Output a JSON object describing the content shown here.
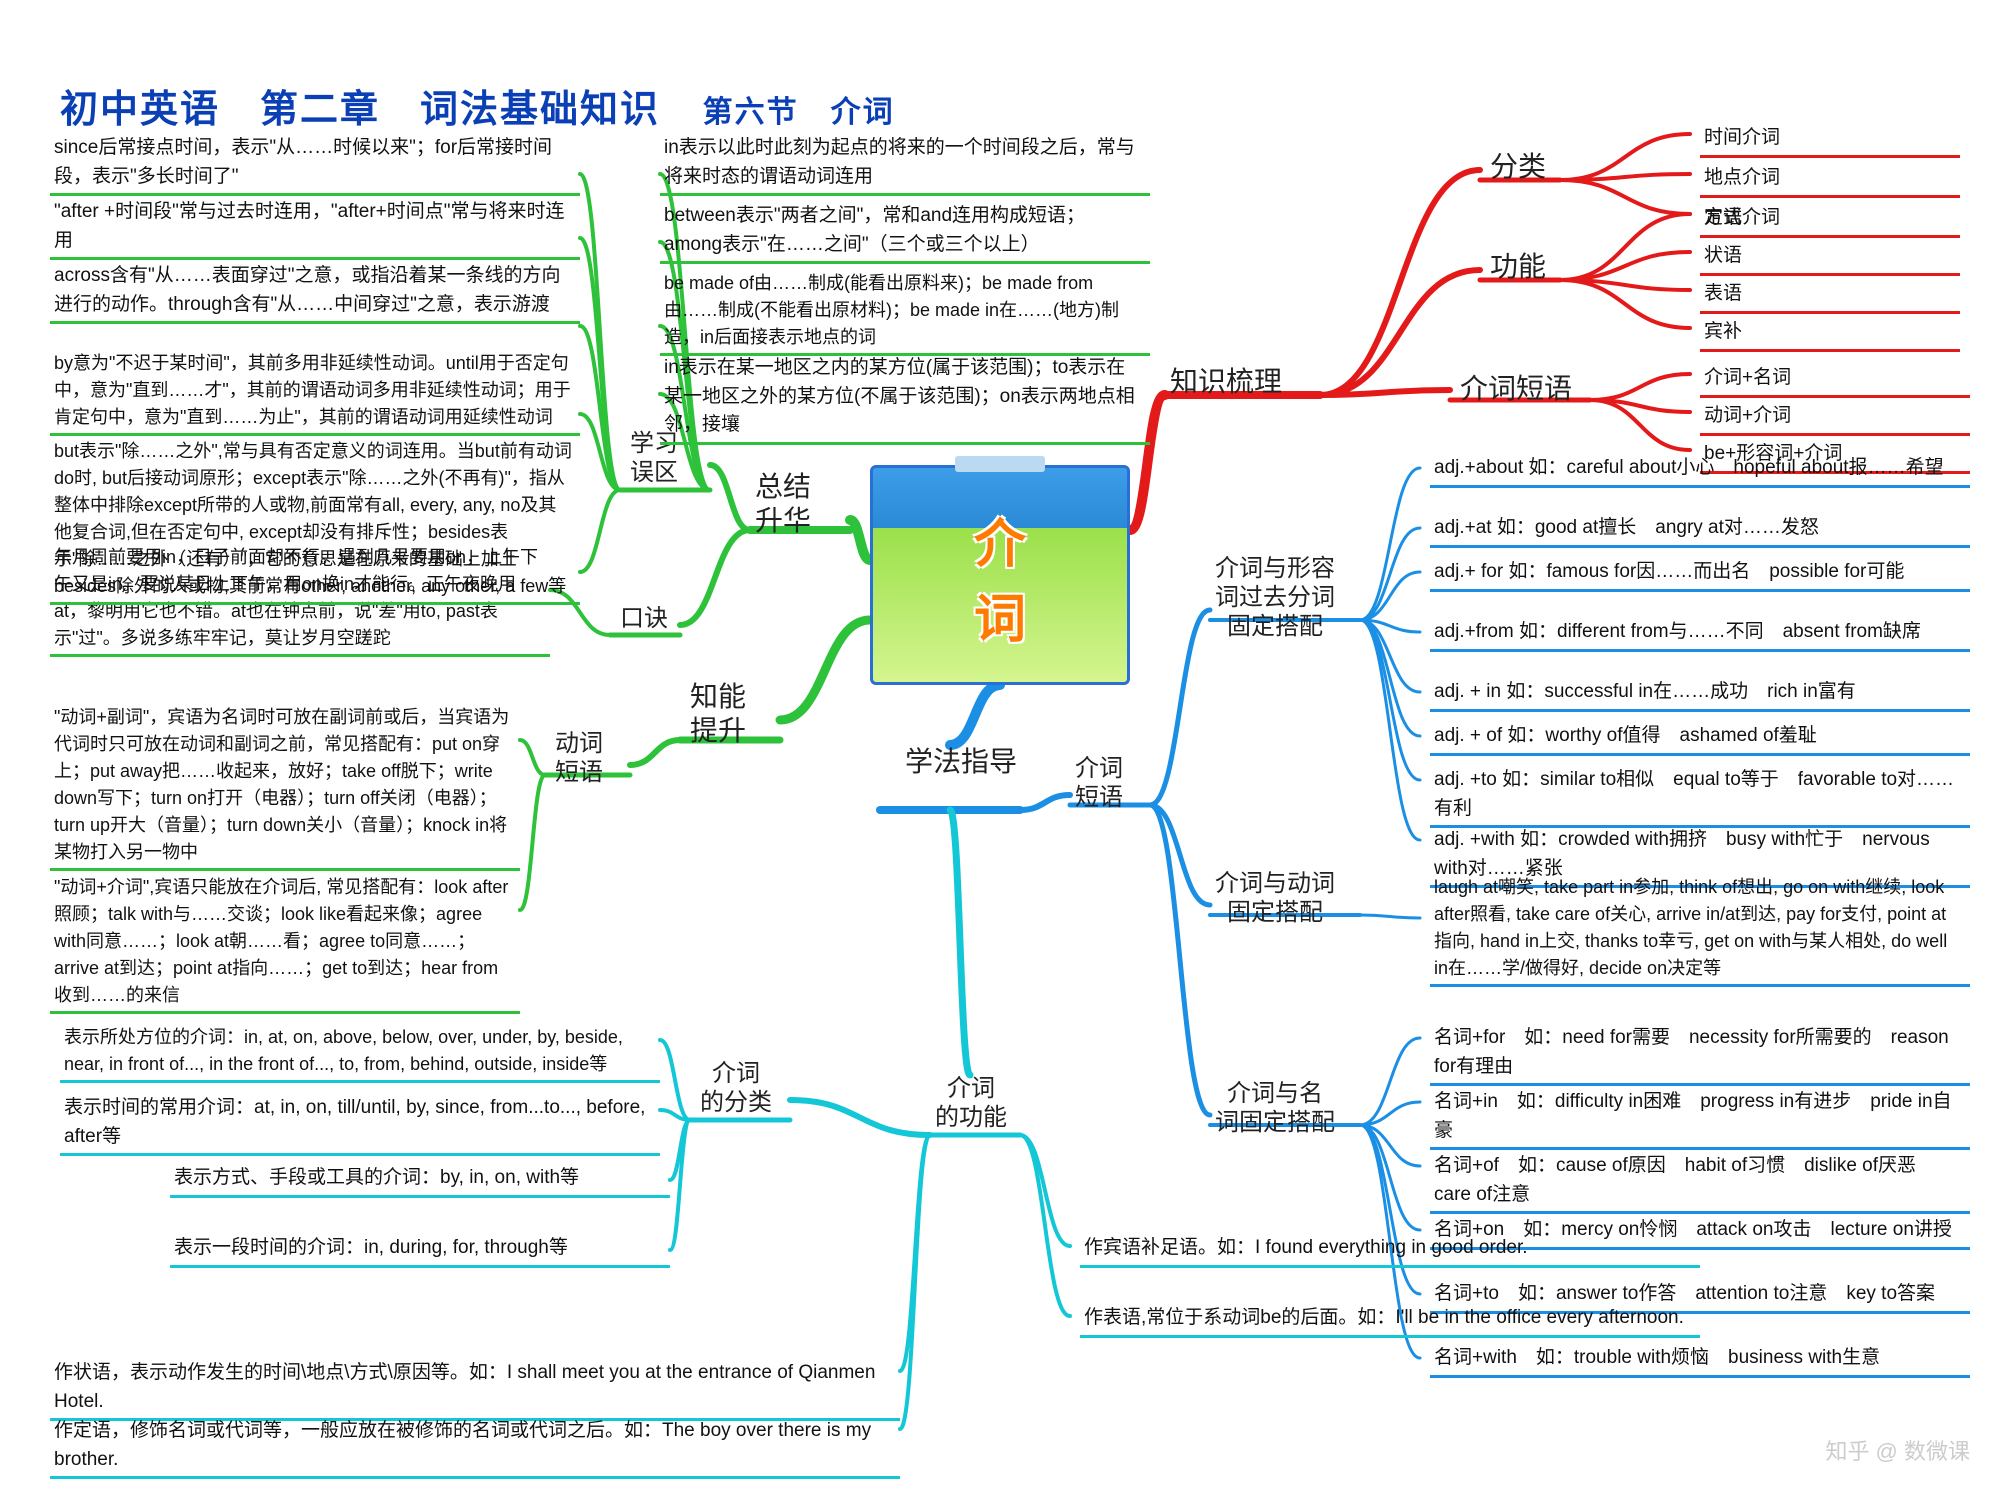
{
  "title_main": "初中英语　第二章　词法基础知识",
  "title_sub": "第六节　介词",
  "center": "介　词",
  "colors": {
    "red": "#e41a1a",
    "blue": "#1a8fe4",
    "cyan": "#14c7d6",
    "green": "#2dc23a",
    "text": "#111111"
  },
  "hubs": {
    "knowledge": "知识梳理",
    "method": "学法指导",
    "summary": "总结\n升华",
    "skill": "知能\n提升"
  },
  "red_branches": {
    "b1": {
      "label": "分类",
      "leaves": [
        "时间介词",
        "地点介词",
        "方式介词"
      ]
    },
    "b2": {
      "label": "功能",
      "leaves": [
        "定语",
        "状语",
        "表语",
        "宾补"
      ]
    },
    "b3": {
      "label": "介词短语",
      "leaves": [
        "介词+名词",
        "动词+介词",
        "be+形容词+介词"
      ]
    }
  },
  "blue_branches": {
    "phrase_hub": "介词\n短语",
    "adj": {
      "label": "介词与形容\n词过去分词\n固定搭配",
      "leaves": [
        "adj.+about 如：careful about小心　hopeful about报……希望",
        "adj.+at 如：good at擅长　angry at对……发怒",
        "adj.+ for 如：famous for因……而出名　possible for可能",
        "adj.+from 如：different from与……不同　absent from缺席",
        "adj. + in 如：successful in在……成功　rich in富有",
        "adj. + of 如：worthy of值得　ashamed of羞耻",
        "adj. +to 如：similar to相似　equal to等于　favorable to对……有利",
        "adj. +with 如：crowded with拥挤　busy with忙于　nervous with对……紧张"
      ]
    },
    "verb": {
      "label": "介词与动词\n固定搭配",
      "leaves": [
        "laugh at嘲笑, take part in参加, think of想出, go on with继续, look after照看, take care of关心, arrive in/at到达, pay for支付, point at指向, hand in上交, thanks to幸亏, get on with与某人相处, do well in在……学/做得好, decide on决定等"
      ]
    },
    "noun": {
      "label": "介词与名\n词固定搭配",
      "leaves": [
        "名词+for　如：need for需要　necessity for所需要的　reason for有理由",
        "名词+in　如：difficulty in困难　progress in有进步　pride in自豪",
        "名词+of　如：cause of原因　habit of习惯　dislike of厌恶　care of注意",
        "名词+on　如：mercy on怜悯　attack on攻击　lecture on讲授",
        "名词+to　如：answer to作答　attention to注意　key to答案",
        "名词+with　如：trouble with烦恼　business with生意"
      ]
    }
  },
  "cyan_branches": {
    "func_hub": "介词\n的功能",
    "class_hub": "介词\n的分类",
    "func_leaves": [
      "作宾语补足语。如：I found everything in good order.",
      "作表语,常位于系动词be的后面。如：I'll be in the office every afternoon.",
      "作状语，表示动作发生的时间\\地点\\方式\\原因等。如：I shall meet you at the entrance of Qianmen Hotel.",
      "作定语，修饰名词或代词等，一般应放在被修饰的名词或代词之后。如：The boy over there is my brother."
    ],
    "class_leaves": [
      "表示所处方位的介词：in, at, on, above, below, over, under, by, beside, near, in front of..., in the front of..., to, from, behind, outside, inside等",
      "表示时间的常用介词：at, in, on, till/until, by, since, from...to..., before, after等",
      "表示方式、手段或工具的介词：by, in, on, with等",
      "表示一段时间的介词：in, during, for, through等"
    ]
  },
  "green_branches": {
    "verb_phrase": "动词\n短语",
    "tips": "口诀",
    "mistakes": "学习\n误区",
    "verb_leaves": [
      "\"动词+副词\"，宾语为名词时可放在副词前或后，当宾语为代词时只可放在动词和副词之前，常见搭配有：put on穿上；put away把……收起来，放好；take off脱下；write down写下；turn on打开（电器）；turn off关闭（电器）；turn up开大（音量）；turn down关小（音量）；knock in将某物打入另一物中",
      "\"动词+介词\",宾语只能放在介词后, 常见搭配有：look after照顾；talk with与……交谈；look like看起来像；agree with同意……；look at朝……看；agree to同意……；arrive at到达；point at指向……；get to到达；hear from收到……的来信"
    ],
    "tips_leaves": [
      "年月周前要用in，日子前面却不行。遇到几号要用on，上午下午又是in。要说某日上下午，用on换in才能行。正午夜晚用at，黎明用它也不错。at也在钟点前，说\"差\"用to, past表示\"过\"。多说多练牢牢记，莫让岁月空蹉跎"
    ],
    "mistake_leaves": [
      "since后常接点时间，表示\"从……时候以来\"；for后常接时间段，表示\"多长时间了\"",
      "\"after +时间段\"常与过去时连用，\"after+时间点\"常与将来时连用",
      "across含有\"从……表面穿过\"之意，或指沿着某一条线的方向进行的动作。through含有\"从……中间穿过\"之意，表示游渡",
      "by意为\"不迟于某时间\"，其前多用非延续性动词。until用于否定句中，意为\"直到……才\"，其前的谓语动词多用非延续性动词；用于肯定句中，意为\"直到……为止\"，其前的谓语动词用延续性动词",
      "but表示\"除……之外\",常与具有否定意义的词连用。当but前有动词do时, but后接动词原形；except表示\"除……之外(不再有)\"，指从整体中排除except所带的人或物,前面常有all, every, any, no及其他复合词,但在否定句中, except却没有排斥性；besides表示\"除……之外（还有）\"，它的意思是在原来的基础上加上besides除外的人或物,其前常有other, another, any other, a few等",
      "in表示以此时此刻为起点的将来的一个时间段之后，常与将来时态的谓语动词连用",
      "between表示\"两者之间\"，常和and连用构成短语；among表示\"在……之间\"（三个或三个以上）",
      "be made of由……制成(能看出原料来)；be made from由……制成(不能看出原材料)；be made in在……(地方)制造，in后面接表示地点的词",
      "in表示在某一地区之内的某方位(属于该范围)；to表示在某一地区之外的某方位(不属于该范围)；on表示两地点相邻，接壤"
    ]
  },
  "watermark": "知乎 @ 数微课"
}
